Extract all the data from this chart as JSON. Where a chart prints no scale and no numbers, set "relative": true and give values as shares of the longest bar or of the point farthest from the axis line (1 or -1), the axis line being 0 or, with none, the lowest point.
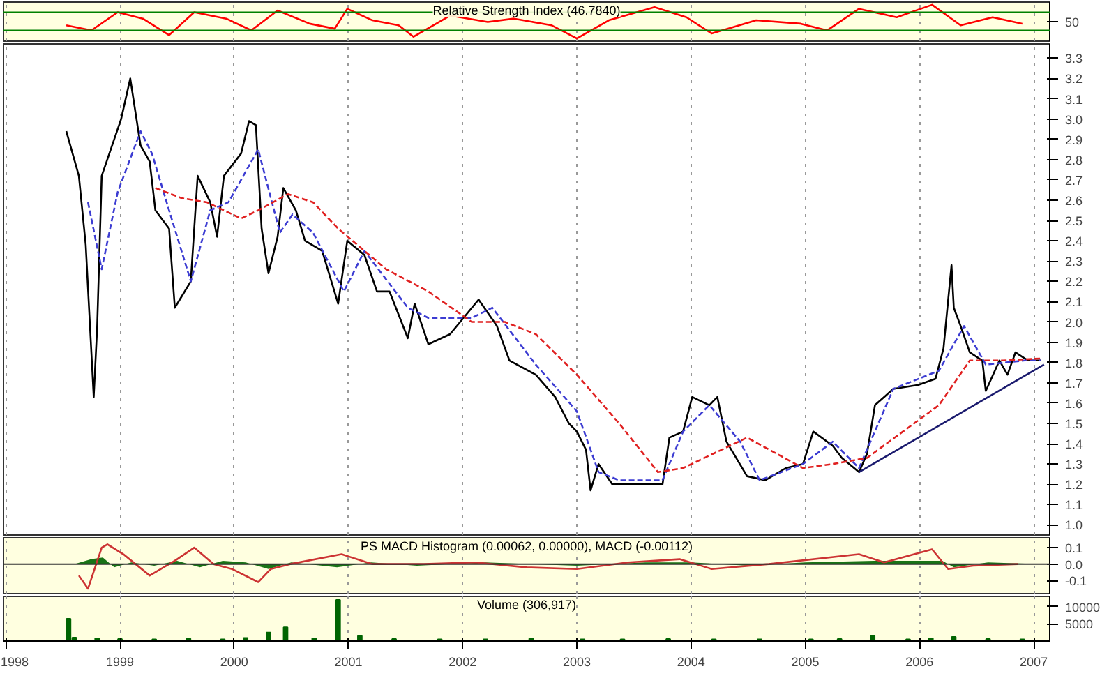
{
  "chart_data": [
    {
      "type": "line",
      "title": "Relative Strength Index (46.7840)",
      "relative": true,
      "grid": "x",
      "tick_labels": false,
      "xlim": [
        1997.98,
        2007.14
      ],
      "xticks": [
        1998,
        1999,
        2000,
        2001,
        2002,
        2003,
        2004,
        2005,
        2006,
        2007
      ],
      "annotations": [
        "50"
      ],
      "ref_lines": [
        {
          "axis": "y",
          "value": 0.78,
          "color": "#008000"
        },
        {
          "axis": "y",
          "value": 0.24,
          "color": "#008000"
        }
      ],
      "series": [
        {
          "color": "#ff0000",
          "x": [
            1998.53,
            1998.75,
            1998.98,
            1999.2,
            1999.43,
            1999.65,
            1999.93,
            2000.15,
            2000.38,
            2000.66,
            2000.88,
            2000.99,
            2001.21,
            2001.44,
            2001.57,
            2001.89,
            2002.22,
            2002.45,
            2002.78,
            2003.0,
            2003.28,
            2003.68,
            2003.96,
            2004.18,
            2004.57,
            2004.96,
            2005.19,
            2005.47,
            2005.8,
            2006.11,
            2006.36,
            2006.64,
            2006.9
          ],
          "values": [
            0.39,
            0.24,
            0.78,
            0.59,
            0.1,
            0.78,
            0.59,
            0.24,
            0.83,
            0.44,
            0.29,
            0.88,
            0.54,
            0.39,
            0.05,
            0.68,
            0.49,
            0.59,
            0.39,
            0,
            0.54,
            0.93,
            0.63,
            0.15,
            0.54,
            0.44,
            0.24,
            0.88,
            0.63,
            1.0,
            0.39,
            0.63,
            0.44
          ]
        }
      ]
    },
    {
      "type": "line",
      "grid": "x",
      "tick_labels": "y",
      "xlim": [
        1997.98,
        2007.14
      ],
      "xticks": [
        1998,
        1999,
        2000,
        2001,
        2002,
        2003,
        2004,
        2005,
        2006,
        2007
      ],
      "ylim": [
        0.95,
        3.37
      ],
      "yticks": [
        {
          "value": 1.0,
          "label": "1.0"
        },
        1.1,
        1.2,
        1.3,
        1.4,
        1.5,
        1.6,
        1.7,
        1.8,
        1.9,
        {
          "value": 2.0,
          "label": "2.0"
        },
        2.1,
        2.2,
        2.3,
        2.4,
        2.5,
        2.6,
        2.7,
        2.8,
        2.9,
        {
          "value": 3.0,
          "label": "3.0"
        },
        3.1,
        3.2,
        3.3
      ],
      "series": [
        {
          "color": "#000000",
          "line_style": "solid",
          "x": [
            1998.53,
            1998.64,
            1998.7,
            1998.77,
            1998.8,
            1998.84,
            1999.01,
            1999.09,
            1999.18,
            1999.26,
            1999.31,
            1999.43,
            1999.48,
            1999.62,
            1999.68,
            1999.79,
            1999.85,
            1999.91,
            2000.06,
            2000.13,
            2000.19,
            2000.24,
            2000.3,
            2000.38,
            2000.43,
            2000.54,
            2000.62,
            2000.77,
            2000.91,
            2000.99,
            2001.14,
            2001.25,
            2001.36,
            2001.52,
            2001.58,
            2001.7,
            2001.89,
            2002.14,
            2002.3,
            2002.41,
            2002.64,
            2002.81,
            2002.93,
            2003.0,
            2003.08,
            2003.12,
            2003.19,
            2003.31,
            2003.56,
            2003.75,
            2003.81,
            2003.93,
            2004.01,
            2004.16,
            2004.23,
            2004.31,
            2004.49,
            2004.65,
            2004.83,
            2004.98,
            2005.07,
            2005.24,
            2005.32,
            2005.47,
            2005.54,
            2005.61,
            2005.77,
            2005.99,
            2006.14,
            2006.21,
            2006.28,
            2006.3,
            2006.36,
            2006.44,
            2006.55,
            2006.58,
            2006.7,
            2006.77,
            2006.84,
            2006.95,
            2007.06
          ],
          "values": [
            2.94,
            2.72,
            2.38,
            1.63,
            1.97,
            2.72,
            3.0,
            3.2,
            2.87,
            2.79,
            2.55,
            2.46,
            2.07,
            2.2,
            2.72,
            2.59,
            2.42,
            2.72,
            2.83,
            2.99,
            2.97,
            2.46,
            2.24,
            2.42,
            2.66,
            2.55,
            2.4,
            2.35,
            2.09,
            2.4,
            2.33,
            2.15,
            2.15,
            1.92,
            2.09,
            1.89,
            1.94,
            2.11,
            1.98,
            1.81,
            1.74,
            1.63,
            1.5,
            1.46,
            1.37,
            1.17,
            1.3,
            1.2,
            1.2,
            1.2,
            1.43,
            1.46,
            1.63,
            1.59,
            1.63,
            1.41,
            1.24,
            1.22,
            1.28,
            1.3,
            1.46,
            1.39,
            1.33,
            1.26,
            1.35,
            1.59,
            1.67,
            1.69,
            1.72,
            1.87,
            2.28,
            2.07,
            1.98,
            1.85,
            1.81,
            1.66,
            1.81,
            1.74,
            1.85,
            1.81,
            1.81
          ]
        },
        {
          "color": "#3c3cd2",
          "line_style": "dashed",
          "x": [
            1998.72,
            1998.84,
            1998.98,
            1999.18,
            1999.28,
            1999.43,
            1999.62,
            1999.79,
            1999.95,
            2000.21,
            2000.4,
            2000.51,
            2000.69,
            2000.96,
            2001.14,
            2001.52,
            2001.7,
            2002.08,
            2002.26,
            2002.64,
            2003.0,
            2003.19,
            2003.37,
            2003.75,
            2003.93,
            2004.16,
            2004.43,
            2004.6,
            2004.98,
            2005.24,
            2005.47,
            2005.77,
            2006.17,
            2006.39,
            2006.58,
            2006.92,
            2007.06
          ],
          "values": [
            2.59,
            2.26,
            2.64,
            2.94,
            2.83,
            2.55,
            2.2,
            2.55,
            2.59,
            2.85,
            2.44,
            2.53,
            2.44,
            2.15,
            2.35,
            2.07,
            2.02,
            2.02,
            2.07,
            1.79,
            1.56,
            1.26,
            1.22,
            1.22,
            1.46,
            1.59,
            1.41,
            1.22,
            1.3,
            1.41,
            1.28,
            1.67,
            1.76,
            1.98,
            1.79,
            1.81,
            1.81
          ]
        },
        {
          "color": "#e02020",
          "line_style": "dashed",
          "x": [
            1999.31,
            1999.54,
            1999.76,
            2000.06,
            2000.21,
            2000.47,
            2000.69,
            2000.91,
            2001.33,
            2001.7,
            2002.08,
            2002.37,
            2002.64,
            2003.0,
            2003.37,
            2003.71,
            2003.93,
            2004.49,
            2004.98,
            2005.24,
            2005.54,
            2006.17,
            2006.44,
            2006.73,
            2007.06
          ],
          "values": [
            2.66,
            2.61,
            2.59,
            2.51,
            2.55,
            2.63,
            2.59,
            2.46,
            2.26,
            2.15,
            2.0,
            2.0,
            1.94,
            1.74,
            1.5,
            1.26,
            1.28,
            1.43,
            1.28,
            1.3,
            1.33,
            1.59,
            1.81,
            1.81,
            1.82
          ]
        },
        {
          "color": "#1a1a6e",
          "line_style": "solid",
          "x": [
            2005.47,
            2007.09
          ],
          "values": [
            1.26,
            1.79
          ]
        }
      ]
    },
    {
      "type": "line",
      "title": "PS MACD Histogram (0.00062, 0.00000), MACD (-0.00112)",
      "grid": "x",
      "tick_labels": "y",
      "xlim": [
        1997.98,
        2007.14
      ],
      "xticks": [
        1998,
        1999,
        2000,
        2001,
        2002,
        2003,
        2004,
        2005,
        2006,
        2007
      ],
      "ylim": [
        -0.18,
        0.16
      ],
      "yticks": [
        0.1,
        {
          "value": 0,
          "label": "0.0"
        },
        -0.1
      ],
      "ref_lines": [
        {
          "axis": "y",
          "value": 0,
          "color": "#333333"
        }
      ],
      "series": [
        {
          "type": "area",
          "color": "#006400",
          "x": [
            1998.6,
            1998.75,
            1998.85,
            1998.95,
            1999.1,
            1999.3,
            1999.5,
            1999.7,
            1999.9,
            2000.1,
            2000.3,
            2000.5,
            2000.9,
            2001.2,
            2001.6,
            2002.2,
            2003.0,
            2003.6,
            2004.0,
            2004.5,
            2005.0,
            2005.6,
            2006.2,
            2006.3,
            2006.6,
            2007.06
          ],
          "values": [
            0,
            0.03,
            0.04,
            -0.02,
            0.01,
            -0.01,
            0.02,
            -0.02,
            0.02,
            0.01,
            -0.03,
            0.01,
            -0.02,
            0.01,
            -0.01,
            0.01,
            -0.01,
            0.01,
            0.01,
            -0.01,
            0.01,
            0.02,
            0.02,
            -0.02,
            0.01,
            0
          ]
        },
        {
          "color": "#cc3333",
          "line_style": "solid",
          "x": [
            1998.64,
            1998.72,
            1998.84,
            1998.89,
            1999.03,
            1999.26,
            1999.48,
            1999.65,
            1999.82,
            1999.98,
            2000.21,
            2000.32,
            2000.49,
            2000.94,
            2001.21,
            2001.66,
            2002.11,
            2002.56,
            2003.0,
            2003.45,
            2003.9,
            2004.18,
            2004.68,
            2005.47,
            2005.69,
            2006.11,
            2006.25,
            2006.47,
            2006.86
          ],
          "values": [
            -0.07,
            -0.15,
            0.1,
            0.12,
            0.06,
            -0.07,
            0.02,
            0.1,
            0,
            -0.03,
            -0.11,
            -0.03,
            0,
            0.06,
            0,
            0,
            0.01,
            -0.02,
            -0.03,
            0.01,
            0.03,
            -0.03,
            0,
            0.06,
            0.01,
            0.09,
            -0.03,
            -0.01,
            0
          ]
        }
      ]
    },
    {
      "type": "bar",
      "title": "Volume (306,917)",
      "grid": "x",
      "xlim": [
        1997.98,
        2007.14
      ],
      "xticks": [
        1998,
        1999,
        2000,
        2001,
        2002,
        2003,
        2004,
        2005,
        2006,
        2007
      ],
      "ylim": [
        0,
        13000
      ],
      "yticks": [
        10000,
        5000
      ],
      "series": [
        {
          "color": "#006400",
          "x": [
            1998.55,
            1998.6,
            1998.8,
            1999.0,
            1999.3,
            1999.6,
            1999.9,
            2000.1,
            2000.3,
            2000.45,
            2000.7,
            2000.91,
            2001.1,
            2001.4,
            2001.8,
            2002.2,
            2002.6,
            2003.05,
            2003.4,
            2003.8,
            2004.2,
            2004.6,
            2005.05,
            2005.3,
            2005.59,
            2005.9,
            2006.1,
            2006.3,
            2006.6,
            2006.9
          ],
          "values": [
            6500,
            1000,
            800,
            600,
            500,
            700,
            500,
            900,
            2500,
            4000,
            800,
            12000,
            1500,
            600,
            500,
            500,
            700,
            500,
            500,
            600,
            500,
            500,
            500,
            600,
            1500,
            500,
            800,
            1200,
            600,
            500
          ]
        }
      ]
    }
  ]
}
